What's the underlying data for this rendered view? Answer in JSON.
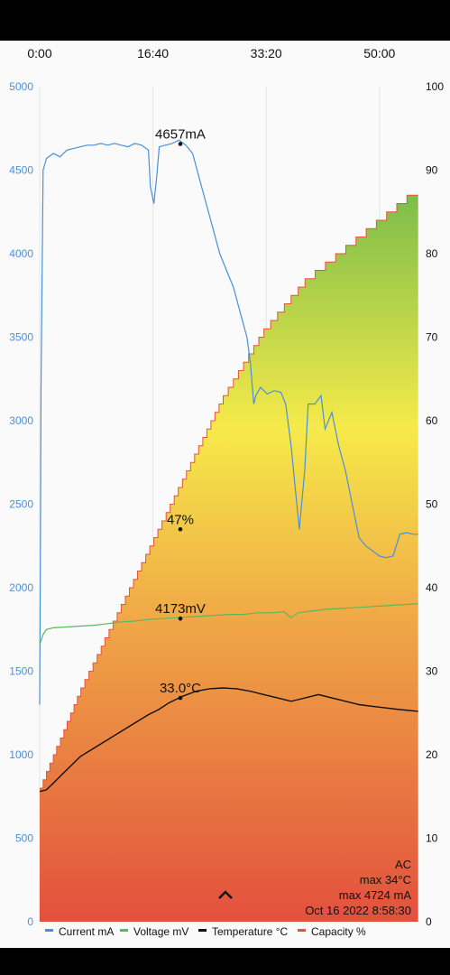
{
  "chart_data": {
    "type": "line",
    "x_ticks": [
      "0:00",
      "16:40",
      "33:20",
      "50:00"
    ],
    "y_left_ticks": [
      "5000",
      "4500",
      "4000",
      "3500",
      "3000",
      "2500",
      "2000",
      "1500",
      "1000",
      "500",
      "0"
    ],
    "y_left_range": [
      0,
      5000
    ],
    "y_right_ticks": [
      "100",
      "90",
      "80",
      "70",
      "60",
      "50",
      "40",
      "30",
      "20",
      "10",
      "0"
    ],
    "y_right_range": [
      0,
      100
    ],
    "x_range_minutes": [
      0,
      56
    ],
    "grid": true,
    "legend_position": "bottom",
    "colors": {
      "current": "#4a90d9",
      "voltage": "#5cb85c",
      "temperature": "#111111",
      "capacity": "#e8513c"
    },
    "series": [
      {
        "name": "Current mA",
        "axis": "left",
        "points": [
          [
            0,
            1300
          ],
          [
            0.1,
            2200
          ],
          [
            0.2,
            3200
          ],
          [
            0.5,
            4500
          ],
          [
            1,
            4570
          ],
          [
            2,
            4600
          ],
          [
            3,
            4580
          ],
          [
            4,
            4620
          ],
          [
            5,
            4630
          ],
          [
            6,
            4640
          ],
          [
            7,
            4650
          ],
          [
            8,
            4650
          ],
          [
            9,
            4660
          ],
          [
            10,
            4650
          ],
          [
            11,
            4660
          ],
          [
            12,
            4650
          ],
          [
            13,
            4640
          ],
          [
            14,
            4660
          ],
          [
            15,
            4650
          ],
          [
            16,
            4620
          ],
          [
            16.3,
            4400
          ],
          [
            16.8,
            4300
          ],
          [
            17.2,
            4450
          ],
          [
            17.6,
            4640
          ],
          [
            18.5,
            4650
          ],
          [
            19.5,
            4660
          ],
          [
            20.5,
            4680
          ],
          [
            21.5,
            4650
          ],
          [
            22.5,
            4600
          ],
          [
            23.5,
            4450
          ],
          [
            24.5,
            4300
          ],
          [
            25.5,
            4150
          ],
          [
            26.5,
            4000
          ],
          [
            27.5,
            3900
          ],
          [
            28.5,
            3800
          ],
          [
            29.5,
            3650
          ],
          [
            30.5,
            3500
          ],
          [
            31,
            3350
          ],
          [
            31.5,
            3100
          ],
          [
            31.8,
            3150
          ],
          [
            32.5,
            3200
          ],
          [
            33.5,
            3160
          ],
          [
            34.5,
            3180
          ],
          [
            35.5,
            3170
          ],
          [
            36.2,
            3100
          ],
          [
            37,
            2850
          ],
          [
            37.6,
            2600
          ],
          [
            38.2,
            2350
          ],
          [
            39,
            2700
          ],
          [
            39.5,
            3100
          ],
          [
            40.5,
            3100
          ],
          [
            41.4,
            3150
          ],
          [
            42,
            2950
          ],
          [
            43,
            3050
          ],
          [
            44,
            2850
          ],
          [
            45,
            2700
          ],
          [
            46,
            2500
          ],
          [
            47,
            2300
          ],
          [
            48,
            2250
          ],
          [
            49,
            2220
          ],
          [
            50,
            2190
          ],
          [
            51,
            2180
          ],
          [
            52,
            2190
          ],
          [
            53,
            2320
          ],
          [
            54,
            2330
          ],
          [
            55,
            2320
          ],
          [
            55.7,
            2320
          ]
        ]
      },
      {
        "name": "Voltage mV",
        "axis": "left",
        "points": [
          [
            0,
            1660
          ],
          [
            0.5,
            1720
          ],
          [
            1,
            1750
          ],
          [
            2,
            1760
          ],
          [
            4,
            1765
          ],
          [
            6,
            1770
          ],
          [
            8,
            1775
          ],
          [
            10,
            1785
          ],
          [
            12,
            1795
          ],
          [
            14,
            1800
          ],
          [
            16,
            1810
          ],
          [
            18,
            1815
          ],
          [
            20,
            1820
          ],
          [
            22,
            1825
          ],
          [
            24,
            1830
          ],
          [
            26,
            1835
          ],
          [
            28,
            1840
          ],
          [
            30,
            1840
          ],
          [
            32,
            1850
          ],
          [
            34,
            1850
          ],
          [
            36,
            1855
          ],
          [
            37,
            1820
          ],
          [
            38,
            1850
          ],
          [
            40,
            1860
          ],
          [
            42,
            1870
          ],
          [
            44,
            1875
          ],
          [
            46,
            1880
          ],
          [
            48,
            1885
          ],
          [
            50,
            1890
          ],
          [
            52,
            1895
          ],
          [
            54,
            1900
          ],
          [
            55.7,
            1905
          ]
        ]
      },
      {
        "name": "Temperature °C",
        "axis": "left",
        "points": [
          [
            0,
            780
          ],
          [
            1,
            790
          ],
          [
            2,
            830
          ],
          [
            3,
            870
          ],
          [
            4,
            910
          ],
          [
            5,
            950
          ],
          [
            6,
            990
          ],
          [
            8,
            1040
          ],
          [
            10,
            1090
          ],
          [
            12,
            1140
          ],
          [
            14,
            1190
          ],
          [
            16,
            1240
          ],
          [
            17.5,
            1270
          ],
          [
            19,
            1310
          ],
          [
            21,
            1350
          ],
          [
            23,
            1380
          ],
          [
            25,
            1395
          ],
          [
            27,
            1400
          ],
          [
            29,
            1395
          ],
          [
            31,
            1380
          ],
          [
            33,
            1360
          ],
          [
            35,
            1340
          ],
          [
            37,
            1320
          ],
          [
            38,
            1330
          ],
          [
            40,
            1350
          ],
          [
            41,
            1360
          ],
          [
            43,
            1340
          ],
          [
            45,
            1320
          ],
          [
            47,
            1300
          ],
          [
            49,
            1290
          ],
          [
            51,
            1280
          ],
          [
            53,
            1270
          ],
          [
            55.7,
            1260
          ]
        ]
      },
      {
        "name": "Capacity %",
        "axis": "right",
        "points": [
          [
            0,
            16
          ],
          [
            3,
            22
          ],
          [
            6,
            28
          ],
          [
            9,
            33
          ],
          [
            12,
            38
          ],
          [
            15,
            43
          ],
          [
            18,
            48
          ],
          [
            21,
            53
          ],
          [
            24,
            58
          ],
          [
            27,
            63
          ],
          [
            30,
            67
          ],
          [
            33,
            71
          ],
          [
            36,
            74
          ],
          [
            39,
            77
          ],
          [
            42,
            79
          ],
          [
            45,
            81
          ],
          [
            48,
            83
          ],
          [
            51,
            85
          ],
          [
            54,
            87
          ],
          [
            55.7,
            88
          ]
        ]
      }
    ],
    "annotations": [
      {
        "text": "4657mA",
        "x": 20.7,
        "y": 4657,
        "axis": "left"
      },
      {
        "text": "47%",
        "x": 20.7,
        "y": 47,
        "axis": "right"
      },
      {
        "text": "4173mV",
        "x": 20.7,
        "y": 1815,
        "axis": "left"
      },
      {
        "text": "33.0°C",
        "x": 20.7,
        "y": 1340,
        "axis": "left"
      }
    ],
    "info": [
      "AC",
      "max 34°C",
      "max 4724 mA",
      "Oct 16 2022 8:58:30"
    ],
    "legend": [
      "Current mA",
      "Voltage mV",
      "Temperature °C",
      "Capacity %"
    ]
  },
  "icons": {
    "expand": "chevron-up-icon"
  }
}
